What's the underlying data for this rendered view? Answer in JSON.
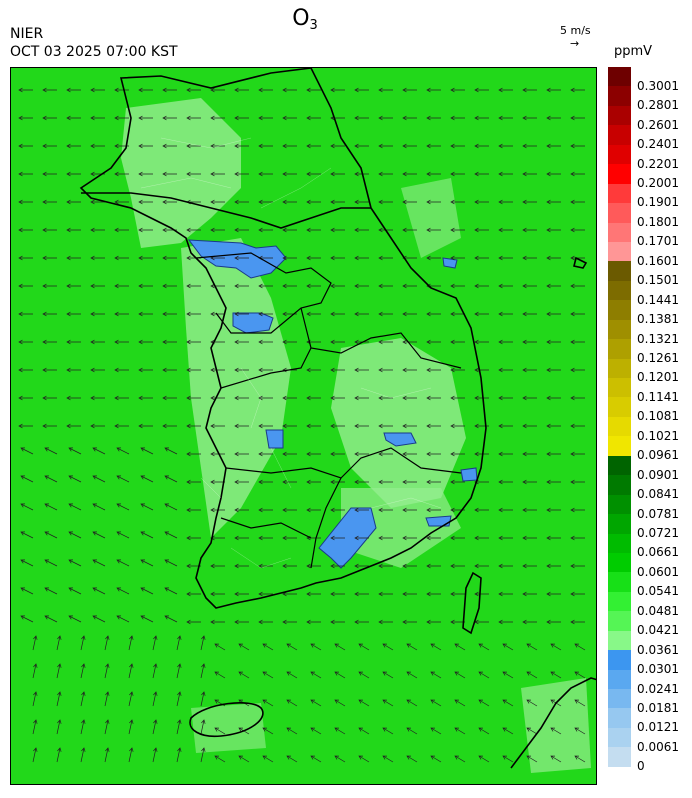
{
  "title": {
    "main": "O",
    "sub": "3"
  },
  "source": "NIER",
  "datetime": "OCT 03 2025 07:00 KST",
  "reference_vector": {
    "label": "5 m/s",
    "arrow": "→"
  },
  "legend": {
    "unit": "ppmV",
    "ticks": [
      "0.3001",
      "0.2801",
      "0.2601",
      "0.2401",
      "0.2201",
      "0.2001",
      "0.1901",
      "0.1801",
      "0.1701",
      "0.1601",
      "0.1501",
      "0.1441",
      "0.1381",
      "0.1321",
      "0.1261",
      "0.1201",
      "0.1141",
      "0.1081",
      "0.1021",
      "0.0961",
      "0.0901",
      "0.0841",
      "0.0781",
      "0.0721",
      "0.0661",
      "0.0601",
      "0.0541",
      "0.0481",
      "0.0421",
      "0.0361",
      "0.0301",
      "0.0241",
      "0.0181",
      "0.0121",
      "0.0061",
      "0"
    ],
    "colors": [
      "#6e0000",
      "#8c0000",
      "#aa0000",
      "#c80000",
      "#e00000",
      "#ff0000",
      "#ff3a3a",
      "#ff5a5a",
      "#ff7676",
      "#ff9696",
      "#6b5a00",
      "#7d6c00",
      "#8e7e00",
      "#9f8f00",
      "#aea000",
      "#bdb000",
      "#ccbf00",
      "#d8cc00",
      "#e6da00",
      "#f0e600",
      "#006400",
      "#007a00",
      "#009000",
      "#00a600",
      "#00bb00",
      "#00cc00",
      "#17e017",
      "#33f033",
      "#55f555",
      "#88f888",
      "#3c96f0",
      "#5aa8f0",
      "#78b8f0",
      "#96c8f0",
      "#aad2f0",
      "#c4ddf0"
    ]
  },
  "map": {
    "background": "#22d81a",
    "light_fill": "#96ee90",
    "blue_fill": "#4a96f0",
    "coastline_color": "#000000"
  }
}
